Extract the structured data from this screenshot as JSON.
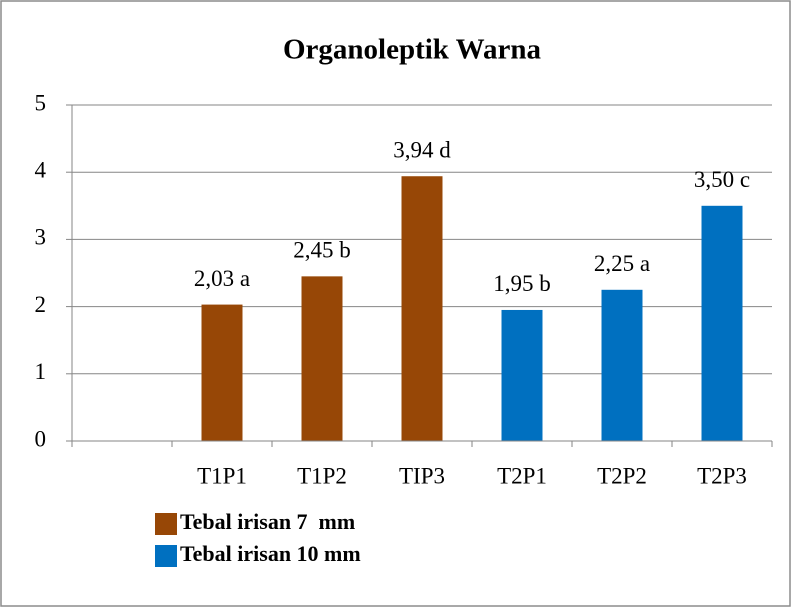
{
  "chart_data": {
    "type": "bar",
    "title": "Organoleptik Warna",
    "categories": [
      null,
      "T1P1",
      "T1P2",
      "TIP3",
      "T2P1",
      "T2P2",
      "T2P3"
    ],
    "series": [
      {
        "name": "Tebal irisan 7  mm",
        "color": "#974706",
        "values": [
          null,
          2.03,
          2.45,
          3.94,
          null,
          null,
          null
        ],
        "value_labels": [
          null,
          "2,03 a",
          "2,45 b",
          "3,94 d",
          null,
          null,
          null
        ]
      },
      {
        "name": "Tebal irisan 10 mm",
        "color": "#0070c0",
        "values": [
          null,
          null,
          null,
          null,
          1.95,
          2.25,
          3.5
        ],
        "value_labels": [
          null,
          null,
          null,
          null,
          "1,95 b",
          "2,25 a",
          "3,50 c"
        ]
      }
    ],
    "ylim": [
      0,
      5
    ],
    "yticks": [
      0,
      1,
      2,
      3,
      4,
      5
    ],
    "grid": true,
    "legend": "bottom-left"
  }
}
